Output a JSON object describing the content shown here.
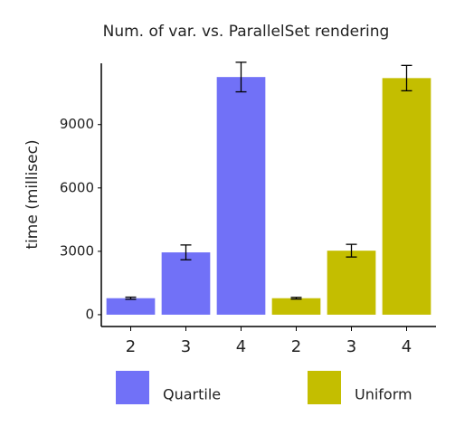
{
  "chart_data": {
    "type": "bar",
    "title": "Num. of var. vs. ParallelSet rendering",
    "y_label": "time (millisec)",
    "categories": [
      "2",
      "3",
      "4",
      "2",
      "3",
      "4"
    ],
    "series": [
      {
        "name": "Quartile",
        "color": "#7171f7",
        "values": [
          780,
          2950,
          11250,
          null,
          null,
          null
        ],
        "errors": [
          50,
          350,
          700,
          null,
          null,
          null
        ]
      },
      {
        "name": "Uniform",
        "color": "#c4be00",
        "values": [
          null,
          null,
          null,
          780,
          3030,
          11200
        ],
        "errors": [
          null,
          null,
          null,
          40,
          300,
          600
        ]
      }
    ],
    "ylim": [
      -560,
      11900
    ],
    "yticks": [
      0,
      3000,
      6000,
      9000
    ],
    "grid": false
  }
}
